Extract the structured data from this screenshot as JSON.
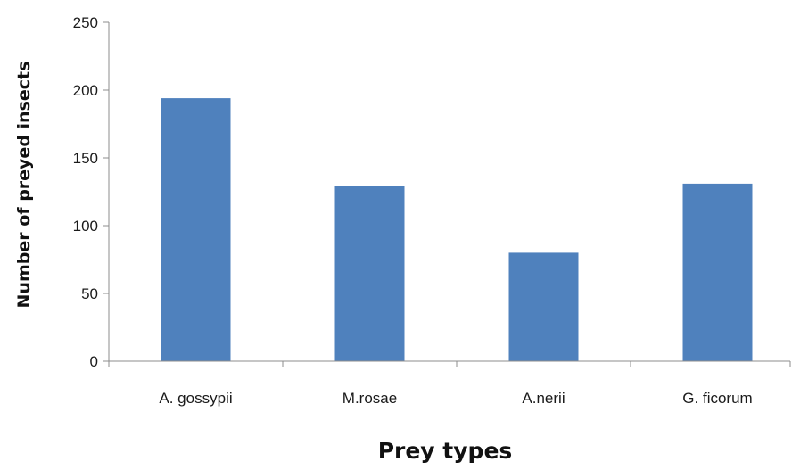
{
  "chart_data": {
    "type": "bar",
    "title": "",
    "xlabel": "Prey types",
    "ylabel": "Number of preyed  insects",
    "categories": [
      "A. gossypii",
      "M.rosae",
      "A.nerii",
      "G. ficorum"
    ],
    "values": [
      194,
      129,
      80,
      131
    ],
    "ylim": [
      0,
      250
    ],
    "yticks": [
      0,
      50,
      100,
      150,
      200,
      250
    ],
    "grid": false,
    "legend": "none",
    "bar_color": "#4f81bd",
    "axis_color": "#8c8c8c"
  }
}
